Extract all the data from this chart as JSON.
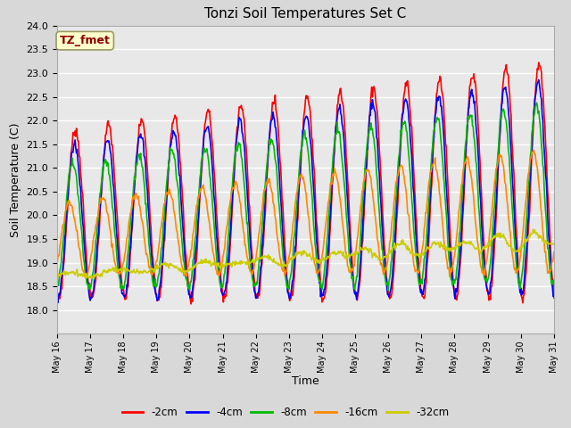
{
  "title": "Tonzi Soil Temperatures Set C",
  "xlabel": "Time",
  "ylabel": "Soil Temperature (C)",
  "ylim": [
    17.5,
    24.0
  ],
  "yticks": [
    18.0,
    18.5,
    19.0,
    19.5,
    20.0,
    20.5,
    21.0,
    21.5,
    22.0,
    22.5,
    23.0,
    23.5,
    24.0
  ],
  "legend_label": "TZ_fmet",
  "legend_text_color": "#8B0000",
  "legend_bg": "#ffffcc",
  "series": {
    "-2cm": {
      "color": "#ff0000",
      "lw": 1.2
    },
    "-4cm": {
      "color": "#0000ff",
      "lw": 1.2
    },
    "-8cm": {
      "color": "#00bb00",
      "lw": 1.2
    },
    "-16cm": {
      "color": "#ff8800",
      "lw": 1.2
    },
    "-32cm": {
      "color": "#cccc00",
      "lw": 1.2
    }
  },
  "xtick_labels": [
    "May 16",
    "May 17",
    "May 18",
    "May 19",
    "May 20",
    "May 21",
    "May 22",
    "May 23",
    "May 24",
    "May 25",
    "May 26",
    "May 27",
    "May 28",
    "May 29",
    "May 30",
    "May 31"
  ],
  "grid_color": "#ffffff",
  "fig_bg": "#d8d8d8",
  "ax_bg": "#e8e8e8",
  "title_fontsize": 11
}
